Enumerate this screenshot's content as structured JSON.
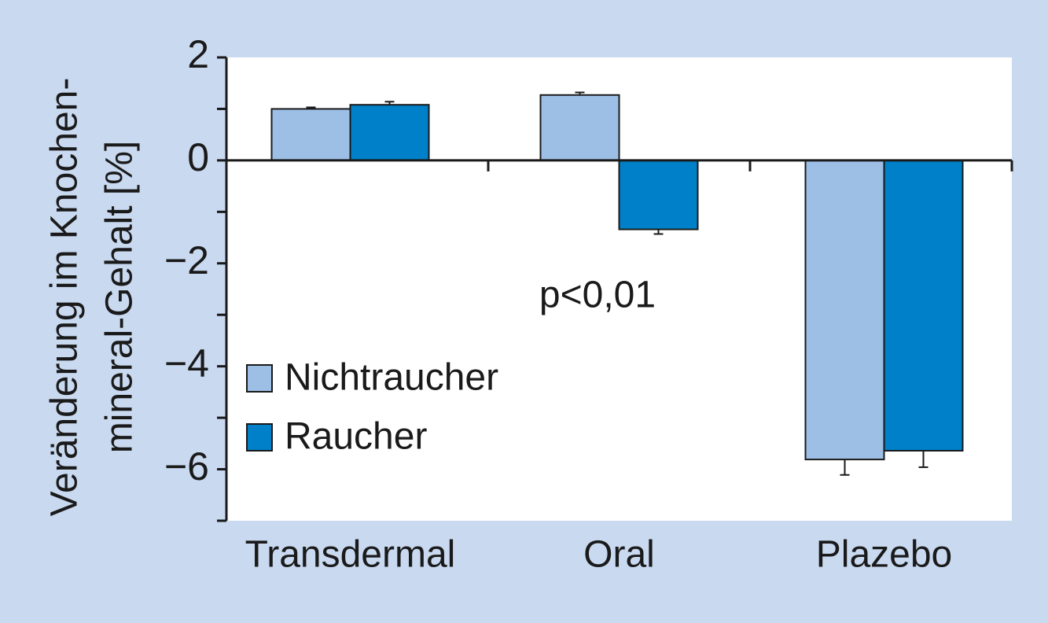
{
  "chart_data": {
    "type": "bar",
    "y_label_lines": [
      "Veränderung im Knochen-",
      "mineral-Gehalt [%]"
    ],
    "categories": [
      "Transdermal",
      "Oral",
      "Plazebo"
    ],
    "series": [
      {
        "name": "Nichtraucher",
        "color": "#9dbfe6",
        "values": [
          1.0,
          1.27,
          -5.81
        ],
        "errors": [
          0.03,
          0.05,
          0.3
        ]
      },
      {
        "name": "Raucher",
        "color": "#0080c8",
        "values": [
          1.08,
          -1.34,
          -5.64
        ],
        "errors": [
          0.06,
          0.09,
          0.32
        ]
      }
    ],
    "annotations": [
      "p<0,01"
    ],
    "ylim": [
      -7,
      2
    ],
    "yticks": [
      2,
      0,
      {
        "value": -2,
        "label": "−2"
      },
      {
        "value": -4,
        "label": "−4"
      },
      {
        "value": -6,
        "label": "−6"
      }
    ],
    "yminor_ticks": [
      1,
      -1,
      -3,
      -5,
      -7
    ],
    "legend": "lower-left"
  }
}
